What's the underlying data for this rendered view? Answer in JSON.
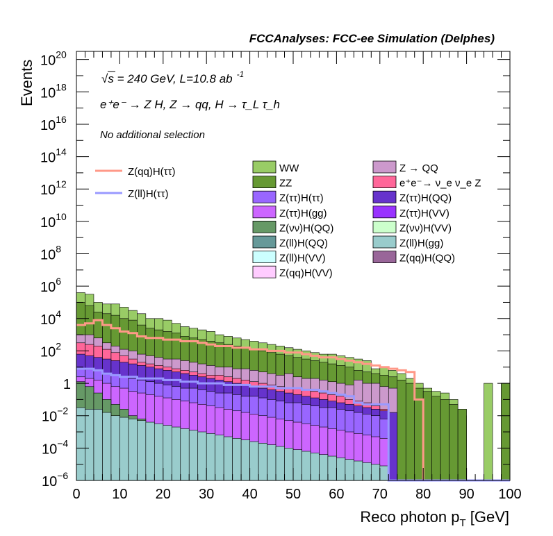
{
  "chart_data": {
    "type": "bar",
    "title": "FCCAnalyses: FCC-ee Simulation (Delphes)",
    "xlabel": "Reco photon p_{T} [GeV]",
    "ylabel": "Events",
    "xlim": [
      0,
      100
    ],
    "ylim_log10": [
      -6,
      20.5
    ],
    "log_y": true,
    "bin_width": 2,
    "x_ticks": [
      0,
      10,
      20,
      30,
      40,
      50,
      60,
      70,
      80,
      90,
      100
    ],
    "y_tick_exponents": [
      -6,
      -4,
      -2,
      0,
      2,
      4,
      6,
      8,
      10,
      12,
      14,
      16,
      18,
      20
    ],
    "annotations": {
      "energy_a": "s",
      "energy_b": " = 240 GeV, L=10.8 ab",
      "energy_sup": "-1",
      "process": "e⁺e⁻ → Z H, Z → qq, H → τ_L τ_h",
      "selection": "No additional selection"
    },
    "stack_order_top_to_bottom": [
      "WW",
      "ZZ",
      "Z → QQ",
      "e⁺e⁻→ ν_e ν_e Z",
      "Z(ττ)H(QQ)",
      "Z(ττ)H(ττ)",
      "Z(ττ)H(gg)",
      "Z(νν)H(QQ)",
      "Z(ll)H(gg)"
    ],
    "legend_signal": [
      {
        "name": "Z(qq)H(ττ)",
        "color": "#ff9988"
      },
      {
        "name": "Z(ll)H(ττ)",
        "color": "#9999ff"
      }
    ],
    "legend_background": [
      {
        "name": "WW",
        "color": "#99cc66"
      },
      {
        "name": "Z → QQ",
        "color": "#cc99cc"
      },
      {
        "name": "ZZ",
        "color": "#669933"
      },
      {
        "name": "e⁺e⁻→ ν_e ν_e Z",
        "color": "#ff6699"
      },
      {
        "name": "Z(ττ)H(ττ)",
        "color": "#9966ff"
      },
      {
        "name": "Z(ττ)H(QQ)",
        "color": "#6633cc"
      },
      {
        "name": "Z(ττ)H(gg)",
        "color": "#cc66ff"
      },
      {
        "name": "Z(ττ)H(VV)",
        "color": "#9933ff"
      },
      {
        "name": "Z(νν)H(QQ)",
        "color": "#669966"
      },
      {
        "name": "Z(νν)H(VV)",
        "color": "#ccffcc"
      },
      {
        "name": "Z(ll)H(QQ)",
        "color": "#669999"
      },
      {
        "name": "Z(ll)H(gg)",
        "color": "#99cccc"
      },
      {
        "name": "Z(ll)H(VV)",
        "color": "#ccffff"
      },
      {
        "name": "Z(qq)H(QQ)",
        "color": "#996699"
      },
      {
        "name": "Z(qq)H(VV)",
        "color": "#ffccff"
      }
    ],
    "stack_bins_log10_top": {
      "WW": [
        5.6,
        5.5,
        5.0,
        4.9,
        4.9,
        4.7,
        4.5,
        4.3,
        4.0,
        4.0,
        3.9,
        3.7,
        3.5,
        3.4,
        3.3,
        3.2,
        3.0,
        2.9,
        2.8,
        2.7,
        2.6,
        2.5,
        2.4,
        2.3,
        2.2,
        2.1,
        2.0,
        1.9,
        1.8,
        1.8,
        1.7,
        1.6,
        1.5,
        1.4,
        0.9,
        1.0,
        0.8,
        0.6,
        0.3,
        0.0,
        -0.3,
        -0.5,
        -0.6,
        -1.0,
        -2.0,
        -6,
        -6,
        0.0,
        -6,
        0.0
      ],
      "ZZ": [
        5.0,
        4.8,
        4.4,
        4.3,
        4.2,
        4.0,
        3.9,
        3.6,
        3.4,
        3.3,
        3.2,
        3.1,
        2.9,
        2.8,
        2.7,
        2.6,
        2.5,
        2.4,
        2.3,
        2.2,
        2.1,
        2.0,
        1.9,
        1.8,
        1.7,
        1.6,
        1.5,
        1.4,
        1.3,
        1.2,
        1.1,
        1.0,
        0.8,
        0.7,
        0.6,
        0.5,
        0.4,
        0.2,
        0.0,
        -0.3,
        -0.5,
        -0.8,
        -1.0,
        -1.3,
        -1.6,
        -6,
        -6,
        -6,
        -6,
        0.0
      ],
      "Z → QQ": [
        3.0,
        3.0,
        2.8,
        2.5,
        2.3,
        2.1,
        2.0,
        1.8,
        1.7,
        1.6,
        1.5,
        1.5,
        1.4,
        1.3,
        1.2,
        1.1,
        1.0,
        1.0,
        0.9,
        0.9,
        0.8,
        0.7,
        0.6,
        0.5,
        0.6,
        0.4,
        0.3,
        0.3,
        0.2,
        0.1,
        0.0,
        -0.1,
        0.2,
        0.0,
        0.0,
        -0.2,
        -0.3,
        -6,
        -6,
        -6,
        -6,
        -6,
        -6,
        -6,
        -6,
        -6,
        -6,
        -6,
        -6,
        -6
      ],
      "e⁺e⁻→ ν_e ν_e Z": [
        2.5,
        2.4,
        2.3,
        2.1,
        1.9,
        1.7,
        1.5,
        1.3,
        1.2,
        1.1,
        1.0,
        0.9,
        0.8,
        0.7,
        0.6,
        0.5,
        0.5,
        0.4,
        0.3,
        0.2,
        0.1,
        0.0,
        -0.1,
        -0.2,
        -0.3,
        -0.3,
        -0.4,
        -0.5,
        -0.6,
        -0.7,
        -0.8,
        -1.0,
        -1.1,
        -1.2,
        -1.4,
        -1.6,
        -6,
        -6,
        -6,
        -6,
        -6,
        -6,
        -6,
        -6,
        -6,
        -6,
        -6,
        -6,
        -6,
        -6
      ],
      "Z(ττ)H(QQ)": [
        1.8,
        1.7,
        1.6,
        1.5,
        1.4,
        1.3,
        1.2,
        1.1,
        1.0,
        0.9,
        0.8,
        0.7,
        0.6,
        0.5,
        0.4,
        0.3,
        0.2,
        0.1,
        0.0,
        -0.1,
        -0.2,
        -0.3,
        -0.4,
        -0.5,
        -0.6,
        -0.7,
        -0.8,
        -0.9,
        -1.0,
        -1.1,
        -1.2,
        -1.3,
        -1.4,
        -1.5,
        -1.6,
        -1.7,
        -1.8,
        -6,
        -6,
        -6,
        -6,
        -6,
        -6,
        -6,
        -6,
        -6,
        -6,
        -6,
        -6,
        -6
      ],
      "Z(ττ)H(ττ)": [
        0.9,
        0.85,
        0.8,
        0.6,
        0.5,
        0.4,
        0.3,
        0.2,
        0.1,
        0.0,
        -0.1,
        -0.2,
        -0.3,
        -0.3,
        -0.4,
        -0.5,
        -0.6,
        -0.6,
        -0.7,
        -0.8,
        -0.8,
        -0.9,
        -1.0,
        -1.1,
        -1.2,
        -1.2,
        -1.3,
        -1.4,
        -1.5,
        -1.5,
        -1.6,
        -1.7,
        -1.8,
        -1.9,
        -2.0,
        -2.2,
        -6,
        -6,
        -6,
        -6,
        -6,
        -6,
        -6,
        -6,
        -6,
        -6,
        -6,
        -6,
        -6,
        -6
      ],
      "Z(ττ)H(gg)": [
        0.4,
        0.3,
        0.2,
        0.0,
        -0.2,
        -0.3,
        -0.5,
        -0.6,
        -0.7,
        -0.8,
        -0.9,
        -1.0,
        -1.1,
        -1.2,
        -1.3,
        -1.4,
        -1.5,
        -1.6,
        -1.7,
        -1.8,
        -1.9,
        -2.0,
        -2.1,
        -2.2,
        -2.3,
        -2.4,
        -2.5,
        -2.6,
        -2.7,
        -2.8,
        -2.9,
        -3.0,
        -3.1,
        -3.2,
        -3.3,
        -3.4,
        -6,
        -6,
        -6,
        -6,
        -6,
        -6,
        -6,
        -6,
        -6,
        -6,
        -6,
        -6,
        -6,
        -6
      ],
      "Z(νν)H(QQ)": [
        0.1,
        -0.2,
        -0.6,
        -1.0,
        -1.3,
        -1.6,
        -2.0,
        -2.2,
        -2.6,
        -3.0,
        -3.3,
        -3.6,
        -4.0,
        -4.3,
        -4.6,
        -5.0,
        -5.3,
        -5.5,
        -6,
        -6,
        -6,
        -6,
        -6,
        -6,
        -6,
        -6,
        -6,
        -6,
        -6,
        -6,
        -6,
        -6,
        -6,
        -6,
        -6,
        -6,
        -6,
        -6,
        -6,
        -6,
        -6,
        -6,
        -6,
        -6,
        -6,
        -6,
        -6,
        -6,
        -6,
        -6
      ],
      "Z(ll)H(gg)": [
        -1.5,
        -1.6,
        -1.6,
        -1.8,
        -2.0,
        -2.1,
        -2.2,
        -2.3,
        -2.4,
        -2.5,
        -2.6,
        -2.7,
        -2.8,
        -2.9,
        -3.0,
        -3.1,
        -3.2,
        -3.3,
        -3.4,
        -3.5,
        -3.6,
        -3.7,
        -3.8,
        -3.9,
        -4.0,
        -4.1,
        -4.2,
        -4.3,
        -4.4,
        -4.5,
        -4.6,
        -4.7,
        -4.8,
        -4.9,
        -5.0,
        -5.1,
        -6,
        -6,
        -6,
        -6,
        -6,
        -6,
        -6,
        -6,
        -6,
        -6,
        -6,
        -6,
        -6,
        -6
      ]
    },
    "signal_lines_log10": {
      "Z(qq)H(ττ)": [
        3.6,
        3.7,
        3.9,
        3.6,
        3.4,
        3.2,
        3.1,
        2.9,
        2.8,
        2.8,
        2.7,
        2.7,
        2.6,
        2.6,
        2.5,
        2.4,
        2.3,
        2.3,
        2.2,
        2.2,
        2.1,
        2.1,
        2.0,
        2.0,
        1.9,
        1.9,
        1.8,
        1.7,
        1.6,
        1.6,
        1.5,
        1.4,
        1.3,
        1.2,
        1.1,
        1.0,
        0.9,
        0.8,
        0.7,
        -1.0,
        -6,
        -6,
        -6,
        -6,
        -6,
        -6,
        -6,
        -6,
        -6,
        -6
      ],
      "Z(ll)H(ττ)": [
        0.9,
        0.9,
        0.8,
        0.6,
        0.5,
        0.4,
        0.4,
        0.3,
        0.3,
        0.3,
        0.2,
        0.2,
        0.1,
        0.1,
        0.0,
        0.0,
        0.0,
        -0.1,
        -0.1,
        -0.1,
        -0.2,
        -0.2,
        -0.2,
        -0.3,
        -0.3,
        -0.3,
        -0.4,
        -0.4,
        -0.5,
        -0.6,
        -0.7,
        -0.8,
        -1.2,
        -1.3,
        -1.3,
        -1.3,
        -6,
        -6,
        -6,
        -6,
        -6,
        -6,
        -6,
        -6,
        -6,
        -6,
        -6,
        -6,
        -6,
        -6
      ]
    }
  }
}
